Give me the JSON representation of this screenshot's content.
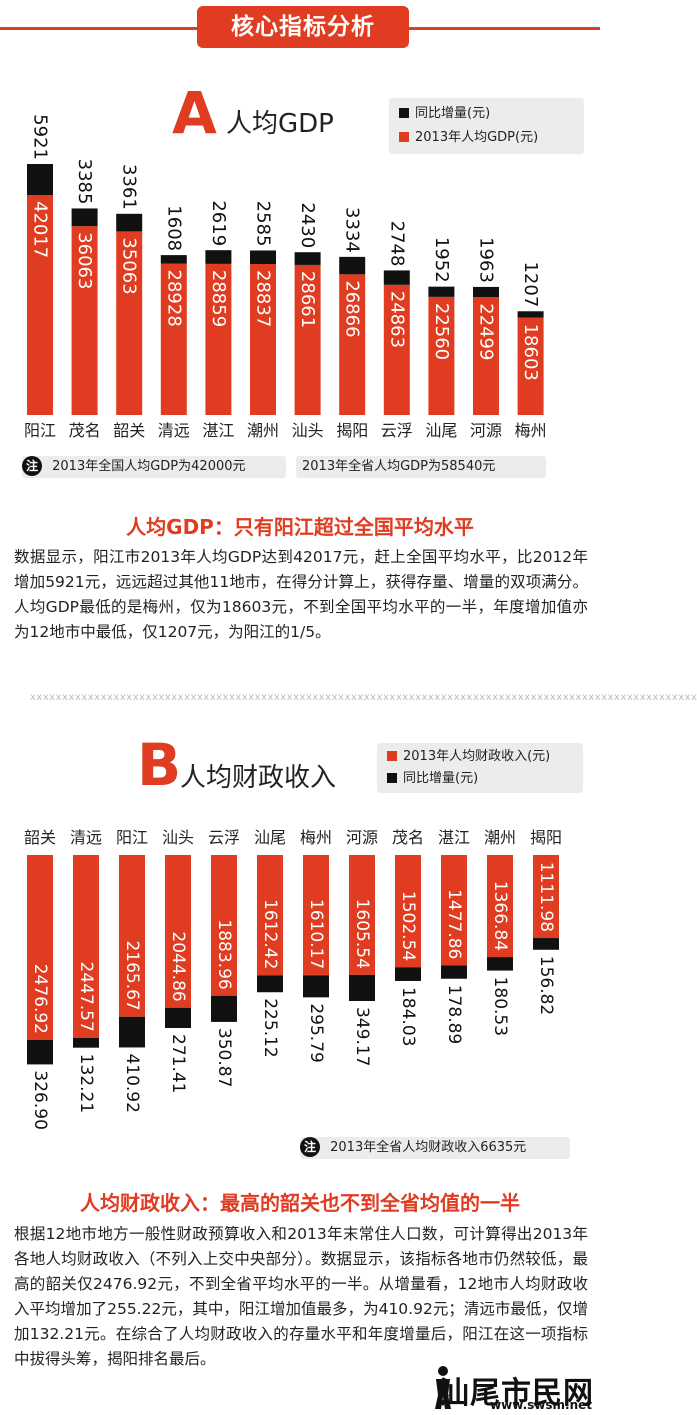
{
  "banner": {
    "title": "核心指标分析"
  },
  "section_a": {
    "letter": "A",
    "title": "人均GDP",
    "legend": [
      {
        "label": "同比增量(元)",
        "color": "#111111"
      },
      {
        "label": "2013年人均GDP(元)",
        "color": "#e03c22"
      }
    ],
    "notes": {
      "icon": "注",
      "items": [
        "2013年全国人均GDP为42000元",
        "2013年全省人均GDP为58540元"
      ]
    },
    "headline": "人均GDP：只有阳江超过全国平均水平",
    "paragraph": "数据显示，阳江市2013年人均GDP达到42017元，赶上全国平均水平，比2012年增加5921元，远远超过其他11地市，在得分计算上，获得存量、增量的双项满分。人均GDP最低的是梅州，仅为18603元，不到全国平均水平的一半，年度增加值亦为12地市中最低，仅1207元，为阳江的1/5。"
  },
  "divider": "xxxxxxxxxxxxxxxxxxxxxxxxxxxxxxxxxxxxxxxxxxxxxxxxxxxxxxxxxxxxxxxxxxxxxxxxxxxxxxxxxxxxxxxxxxxxxxxxxxxxxxxx",
  "section_b": {
    "letter": "B",
    "title": "人均财政收入",
    "legend": [
      {
        "label": "2013年人均财政收入(元)",
        "color": "#e03c22"
      },
      {
        "label": "同比增量(元)",
        "color": "#111111"
      }
    ],
    "notes": {
      "icon": "注",
      "items": [
        "2013年全省人均财政收入6635元"
      ]
    },
    "headline": "人均财政收入：最高的韶关也不到全省均值的一半",
    "paragraph": "根据12地市地方一般性财政预算收入和2013年末常住人口数，可计算得出2013年各地人均财政收入（不列入上交中央部分）。数据显示，该指标各地市仍然较低，最高的韶关仅2476.92元，不到全省平均水平的一半。从增量看，12地市人均财政收入平均增加了255.22元，其中，阳江增加值最多，为410.92元；清远市最低，仅增加132.21元。在综合了人均财政收入的存量水平和年度增量后，阳江在这一项指标中拔得头筹，揭阳排名最后。"
  },
  "watermark": {
    "text": "汕尾市民网",
    "url": "www.swsm.net"
  },
  "chart_data": [
    {
      "type": "bar",
      "title": "人均GDP",
      "categories": [
        "阳江",
        "茂名",
        "韶关",
        "清远",
        "湛江",
        "潮州",
        "汕头",
        "揭阳",
        "云浮",
        "汕尾",
        "河源",
        "梅州"
      ],
      "series": [
        {
          "name": "2013年人均GDP(元)",
          "values": [
            42017,
            36063,
            35063,
            28928,
            28859,
            28837,
            28661,
            26866,
            24863,
            22560,
            22499,
            18603
          ],
          "color": "#e03c22"
        },
        {
          "name": "同比增量(元)",
          "values": [
            5921,
            3385,
            3361,
            1608,
            2619,
            2585,
            2430,
            3334,
            2748,
            1952,
            1963,
            1207
          ],
          "color": "#111111"
        }
      ],
      "stacked": true,
      "labels": {
        "totals": [
          "42017",
          "36063",
          "35063",
          "28928",
          "28859",
          "28837",
          "28661",
          "26866",
          "24863",
          "22560",
          "22499",
          "18603"
        ],
        "increments": [
          "5921",
          "3385",
          "3361",
          "1608",
          "2619",
          "2585",
          "2430",
          "3334",
          "2748",
          "1952",
          "1963",
          "1207"
        ]
      }
    },
    {
      "type": "bar",
      "title": "人均财政收入",
      "categories": [
        "韶关",
        "清远",
        "阳江",
        "汕头",
        "云浮",
        "汕尾",
        "梅州",
        "河源",
        "茂名",
        "湛江",
        "潮州",
        "揭阳"
      ],
      "series": [
        {
          "name": "2013年人均财政收入(元)",
          "values": [
            2476.92,
            2447.57,
            2165.67,
            2044.86,
            1883.96,
            1612.42,
            1610.17,
            1605.54,
            1502.54,
            1477.86,
            1366.84,
            1111.98
          ],
          "color": "#e03c22"
        },
        {
          "name": "同比增量(元)",
          "values": [
            326.9,
            132.21,
            410.92,
            271.41,
            350.87,
            225.12,
            295.79,
            349.17,
            184.03,
            178.89,
            180.53,
            156.82
          ],
          "color": "#111111"
        }
      ],
      "stacked": true,
      "orientation": "hanging",
      "labels": {
        "totals": [
          "2476.92",
          "2447.57",
          "2165.67",
          "2044.86",
          "1883.96",
          "1612.42",
          "1610.17",
          "1605.54",
          "1502.54",
          "1477.86",
          "1366.84",
          "1111.98"
        ],
        "increments": [
          "326.90",
          "132.21",
          "410.92",
          "271.41",
          "350.87",
          "225.12",
          "295.79",
          "349.17",
          "184.03",
          "178.89",
          "180.53",
          "156.82"
        ]
      }
    }
  ]
}
